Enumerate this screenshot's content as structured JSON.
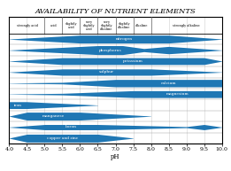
{
  "chart_data": {
    "type": "band",
    "title": "AVAILABILITY OF NUTRIENT ELEMENTS",
    "xlabel": "pH",
    "xlim": [
      4.0,
      10.0
    ],
    "xticks": [
      4.0,
      4.5,
      5.0,
      5.5,
      6.0,
      6.5,
      7.0,
      7.5,
      8.0,
      8.5,
      9.0,
      9.5,
      10.0
    ],
    "grid": true,
    "tick_labels": "x",
    "color": "#1f77b4",
    "zone_bounds": [
      4.0,
      5.0,
      5.5,
      6.0,
      6.5,
      7.0,
      7.5,
      8.0,
      10.0
    ],
    "zone_labels": [
      "strongly acid",
      "acid",
      "slightly\nacid",
      "very\nslightly\nacid",
      "very\nslightly\nalkaline",
      "slightly\nalkaline",
      "alkaline",
      "strongly alkaline"
    ],
    "categories": [
      "nitrogen",
      "phosphorus",
      "potassium",
      "sulphur",
      "calcium",
      "magnesium",
      "iron",
      "manganese",
      "boron",
      "copper and zinc"
    ],
    "segments": [
      [
        {
          "x0": 4.0,
          "x1": 6.0,
          "w0": 0.02,
          "w1": 0.75
        },
        {
          "x0": 6.0,
          "x1": 8.5,
          "w0": 0.75,
          "w1": 0.75
        },
        {
          "x0": 8.5,
          "x1": 10.0,
          "w0": 0.75,
          "w1": 0.02
        }
      ],
      [
        {
          "x0": 4.0,
          "x1": 6.5,
          "w0": 0.02,
          "w1": 0.85
        },
        {
          "x0": 6.5,
          "x1": 7.2,
          "w0": 0.85,
          "w1": 0.85
        },
        {
          "x0": 7.2,
          "x1": 7.8,
          "w0": 0.85,
          "w1": 0.3
        },
        {
          "x0": 7.8,
          "x1": 8.5,
          "w0": 0.3,
          "w1": 0.7
        },
        {
          "x0": 8.5,
          "x1": 10.0,
          "w0": 0.7,
          "w1": 0.02
        }
      ],
      [
        {
          "x0": 4.0,
          "x1": 5.5,
          "w0": 0.02,
          "w1": 0.65
        },
        {
          "x0": 5.5,
          "x1": 9.5,
          "w0": 0.65,
          "w1": 0.65
        },
        {
          "x0": 9.5,
          "x1": 10.0,
          "w0": 0.65,
          "w1": 0.02
        }
      ],
      [
        {
          "x0": 4.0,
          "x1": 5.5,
          "w0": 0.02,
          "w1": 0.6
        },
        {
          "x0": 5.5,
          "x1": 8.0,
          "w0": 0.6,
          "w1": 0.6
        },
        {
          "x0": 8.0,
          "x1": 10.0,
          "w0": 0.6,
          "w1": 0.02
        }
      ],
      [
        {
          "x0": 4.0,
          "x1": 5.5,
          "w0": 0.02,
          "w1": 0.15
        },
        {
          "x0": 5.5,
          "x1": 7.0,
          "w0": 0.15,
          "w1": 0.7
        },
        {
          "x0": 7.0,
          "x1": 10.0,
          "w0": 0.7,
          "w1": 0.7
        }
      ],
      [
        {
          "x0": 4.0,
          "x1": 5.5,
          "w0": 0.02,
          "w1": 0.15
        },
        {
          "x0": 5.5,
          "x1": 7.5,
          "w0": 0.15,
          "w1": 0.65
        },
        {
          "x0": 7.5,
          "x1": 10.0,
          "w0": 0.65,
          "w1": 0.65
        }
      ],
      [
        {
          "x0": 4.0,
          "x1": 4.5,
          "w0": 0.65,
          "w1": 0.65
        },
        {
          "x0": 4.5,
          "x1": 6.5,
          "w0": 0.65,
          "w1": 0.02
        }
      ],
      [
        {
          "x0": 4.0,
          "x1": 4.5,
          "w0": 0.02,
          "w1": 0.75
        },
        {
          "x0": 4.5,
          "x1": 6.0,
          "w0": 0.75,
          "w1": 0.75
        },
        {
          "x0": 6.0,
          "x1": 8.0,
          "w0": 0.75,
          "w1": 0.02
        }
      ],
      [
        {
          "x0": 4.0,
          "x1": 5.0,
          "w0": 0.02,
          "w1": 0.5
        },
        {
          "x0": 5.0,
          "x1": 6.5,
          "w0": 0.5,
          "w1": 0.5
        },
        {
          "x0": 6.5,
          "x1": 9.0,
          "w0": 0.5,
          "w1": 0.1
        },
        {
          "x0": 9.0,
          "x1": 9.5,
          "w0": 0.1,
          "w1": 0.5
        },
        {
          "x0": 9.5,
          "x1": 10.0,
          "w0": 0.5,
          "w1": 0.02
        }
      ],
      [
        {
          "x0": 4.0,
          "x1": 4.5,
          "w0": 0.02,
          "w1": 0.75
        },
        {
          "x0": 4.5,
          "x1": 6.5,
          "w0": 0.75,
          "w1": 0.75
        },
        {
          "x0": 6.5,
          "x1": 7.5,
          "w0": 0.75,
          "w1": 0.02
        }
      ]
    ]
  }
}
